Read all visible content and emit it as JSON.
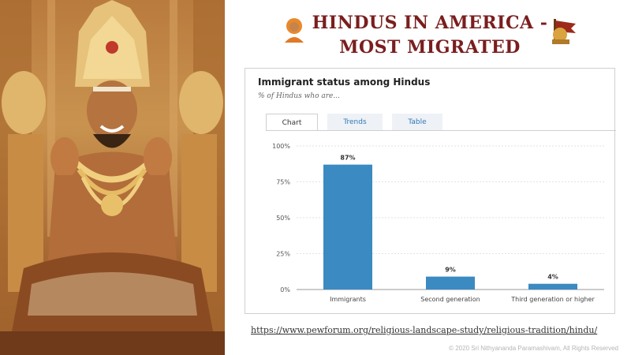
{
  "header": {
    "title_line1": "HINDUS IN AMERICA -",
    "title_line2": "MOST MIGRATED"
  },
  "colors": {
    "title": "#7a1e1e",
    "bar": "#3b8ac2",
    "tab_link": "#2f79b8"
  },
  "tabs": [
    {
      "label": "Chart",
      "active": true
    },
    {
      "label": "Trends",
      "active": false
    },
    {
      "label": "Table",
      "active": false
    }
  ],
  "chart_data": {
    "type": "bar",
    "title": "Immigrant status among Hindus",
    "subtitle": "% of Hindus who are...",
    "categories": [
      "Immigrants",
      "Second generation",
      "Third generation or higher"
    ],
    "values": [
      87,
      9,
      4
    ],
    "value_labels": [
      "87%",
      "9%",
      "4%"
    ],
    "ylim": [
      0,
      100
    ],
    "yticks": [
      0,
      25,
      50,
      75,
      100
    ],
    "ytick_labels": [
      "0%",
      "25%",
      "50%",
      "75%",
      "100%"
    ],
    "grid": true,
    "legend": "none"
  },
  "source_url": "https://www.pewforum.org/religious-landscape-study/religious-tradition/hindu/",
  "copyright": "© 2020 Sri Nithyananda Paramashivam, All Rights Reserved"
}
